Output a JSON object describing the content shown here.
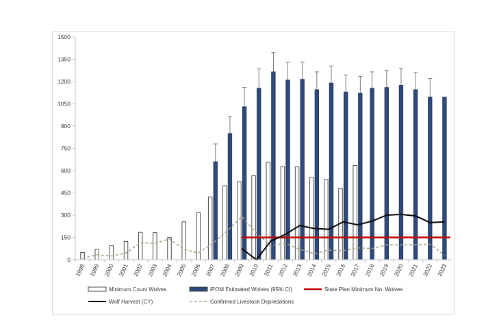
{
  "chart_data": {
    "type": "bar",
    "title": "",
    "xlabel": "",
    "ylabel": "",
    "ylim": [
      0,
      1500
    ],
    "yticks": [
      0,
      150,
      300,
      450,
      600,
      750,
      900,
      1050,
      1200,
      1350,
      1500
    ],
    "grid": false,
    "legend_position": "bottom",
    "categories": [
      "1998",
      "1999",
      "2000",
      "2001",
      "2002",
      "2003",
      "2004",
      "2005",
      "2006",
      "2007",
      "2008",
      "2009",
      "2010",
      "2011",
      "2012",
      "2013",
      "2014",
      "2015",
      "2016",
      "2017",
      "2018",
      "2019",
      "2020",
      "2021",
      "2022",
      "2023"
    ],
    "series": [
      {
        "name": "Minimum Count Wolves",
        "kind": "bar",
        "color": "#ffffff",
        "values": [
          49,
          70,
          94,
          123,
          184,
          182,
          149,
          255,
          316,
          423,
          498,
          525,
          566,
          657,
          627,
          625,
          554,
          540,
          480,
          634,
          null,
          null,
          null,
          null,
          null,
          null
        ]
      },
      {
        "name": "iPOM Estimated Wolves (95% CI)",
        "kind": "bar",
        "color": "#2e4a7d",
        "values": [
          null,
          null,
          null,
          null,
          null,
          null,
          null,
          null,
          null,
          660,
          850,
          1030,
          1155,
          1265,
          1210,
          1215,
          1145,
          1190,
          1130,
          1120,
          1155,
          1160,
          1175,
          1145,
          1095,
          1095
        ],
        "error_upper": [
          null,
          null,
          null,
          null,
          null,
          null,
          null,
          null,
          null,
          780,
          965,
          1160,
          1285,
          1395,
          1330,
          1330,
          1265,
          1305,
          1245,
          1235,
          1265,
          1275,
          1290,
          1260,
          1220,
          null
        ]
      },
      {
        "name": "State Plan Minimum No. Wolves",
        "kind": "line",
        "color": "#c00000",
        "values": [
          null,
          null,
          null,
          null,
          null,
          null,
          null,
          null,
          null,
          null,
          null,
          150,
          150,
          150,
          150,
          150,
          150,
          150,
          150,
          150,
          150,
          150,
          150,
          150,
          150,
          150
        ]
      },
      {
        "name": "Wolf Harvest (CY)",
        "kind": "line",
        "color": "#000000",
        "values": [
          null,
          null,
          null,
          null,
          null,
          null,
          null,
          null,
          null,
          null,
          null,
          75,
          0,
          125,
          170,
          230,
          210,
          205,
          255,
          235,
          260,
          300,
          305,
          295,
          250,
          255
        ]
      },
      {
        "name": "Confirmed Livestock Depredations",
        "kind": "dashed-line",
        "color": "#a8a380",
        "values": [
          8,
          33,
          25,
          45,
          115,
          110,
          140,
          70,
          45,
          110,
          195,
          290,
          180,
          95,
          110,
          70,
          40,
          65,
          60,
          80,
          75,
          100,
          100,
          100,
          105,
          30
        ]
      }
    ]
  }
}
